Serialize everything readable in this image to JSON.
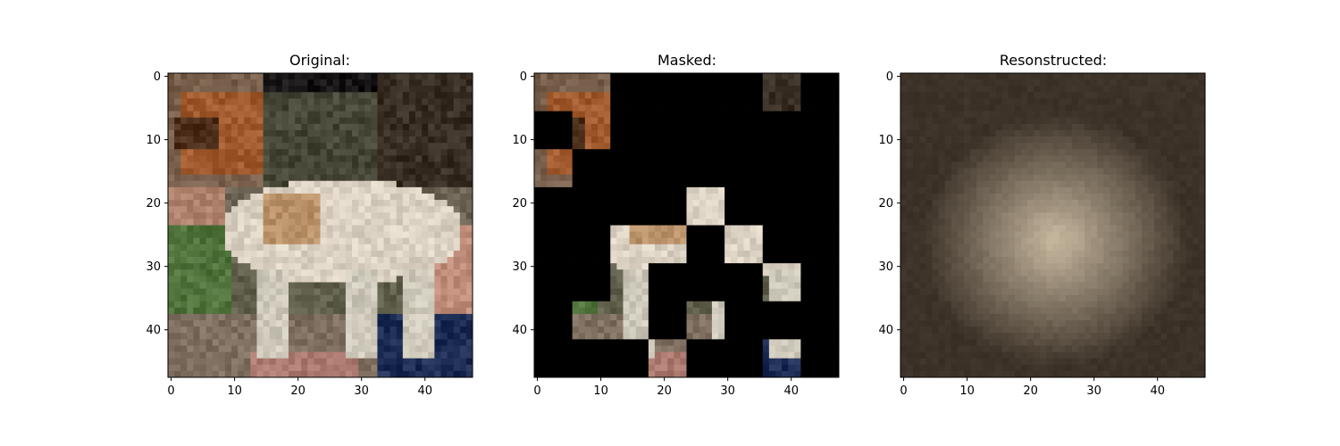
{
  "figure": {
    "background": "#ffffff"
  },
  "chart_data": [
    {
      "type": "heatmap",
      "title": "Original:",
      "image_size": [
        48,
        48
      ],
      "xticks": [
        0,
        10,
        20,
        30,
        40
      ],
      "yticks": [
        0,
        10,
        20,
        30,
        40
      ],
      "xlim": [
        -0.5,
        47.5
      ],
      "ylim": [
        47.5,
        -0.5
      ],
      "content": "full image"
    },
    {
      "type": "heatmap",
      "title": "Masked:",
      "image_size": [
        48,
        48
      ],
      "patch_size": 6,
      "mask_color": "#000000",
      "xticks": [
        0,
        10,
        20,
        30,
        40
      ],
      "yticks": [
        0,
        10,
        20,
        30,
        40
      ],
      "xlim": [
        -0.5,
        47.5
      ],
      "ylim": [
        47.5,
        -0.5
      ],
      "visible_patches": [
        [
          0,
          0
        ],
        [
          0,
          1
        ],
        [
          0,
          6
        ],
        [
          1,
          1
        ],
        [
          2,
          0
        ],
        [
          3,
          4
        ],
        [
          4,
          2
        ],
        [
          4,
          3
        ],
        [
          4,
          5
        ],
        [
          5,
          2
        ],
        [
          5,
          6
        ],
        [
          6,
          1
        ],
        [
          6,
          2
        ],
        [
          6,
          4
        ],
        [
          7,
          3
        ],
        [
          7,
          6
        ]
      ],
      "content": "most 6x6 patches masked"
    },
    {
      "type": "heatmap",
      "title": "Resonstructed:",
      "image_size": [
        48,
        48
      ],
      "xticks": [
        0,
        10,
        20,
        30,
        40
      ],
      "yticks": [
        0,
        10,
        20,
        30,
        40
      ],
      "xlim": [
        -0.5,
        47.5
      ],
      "ylim": [
        47.5,
        -0.5
      ],
      "content": "blurry reconstruction"
    }
  ]
}
